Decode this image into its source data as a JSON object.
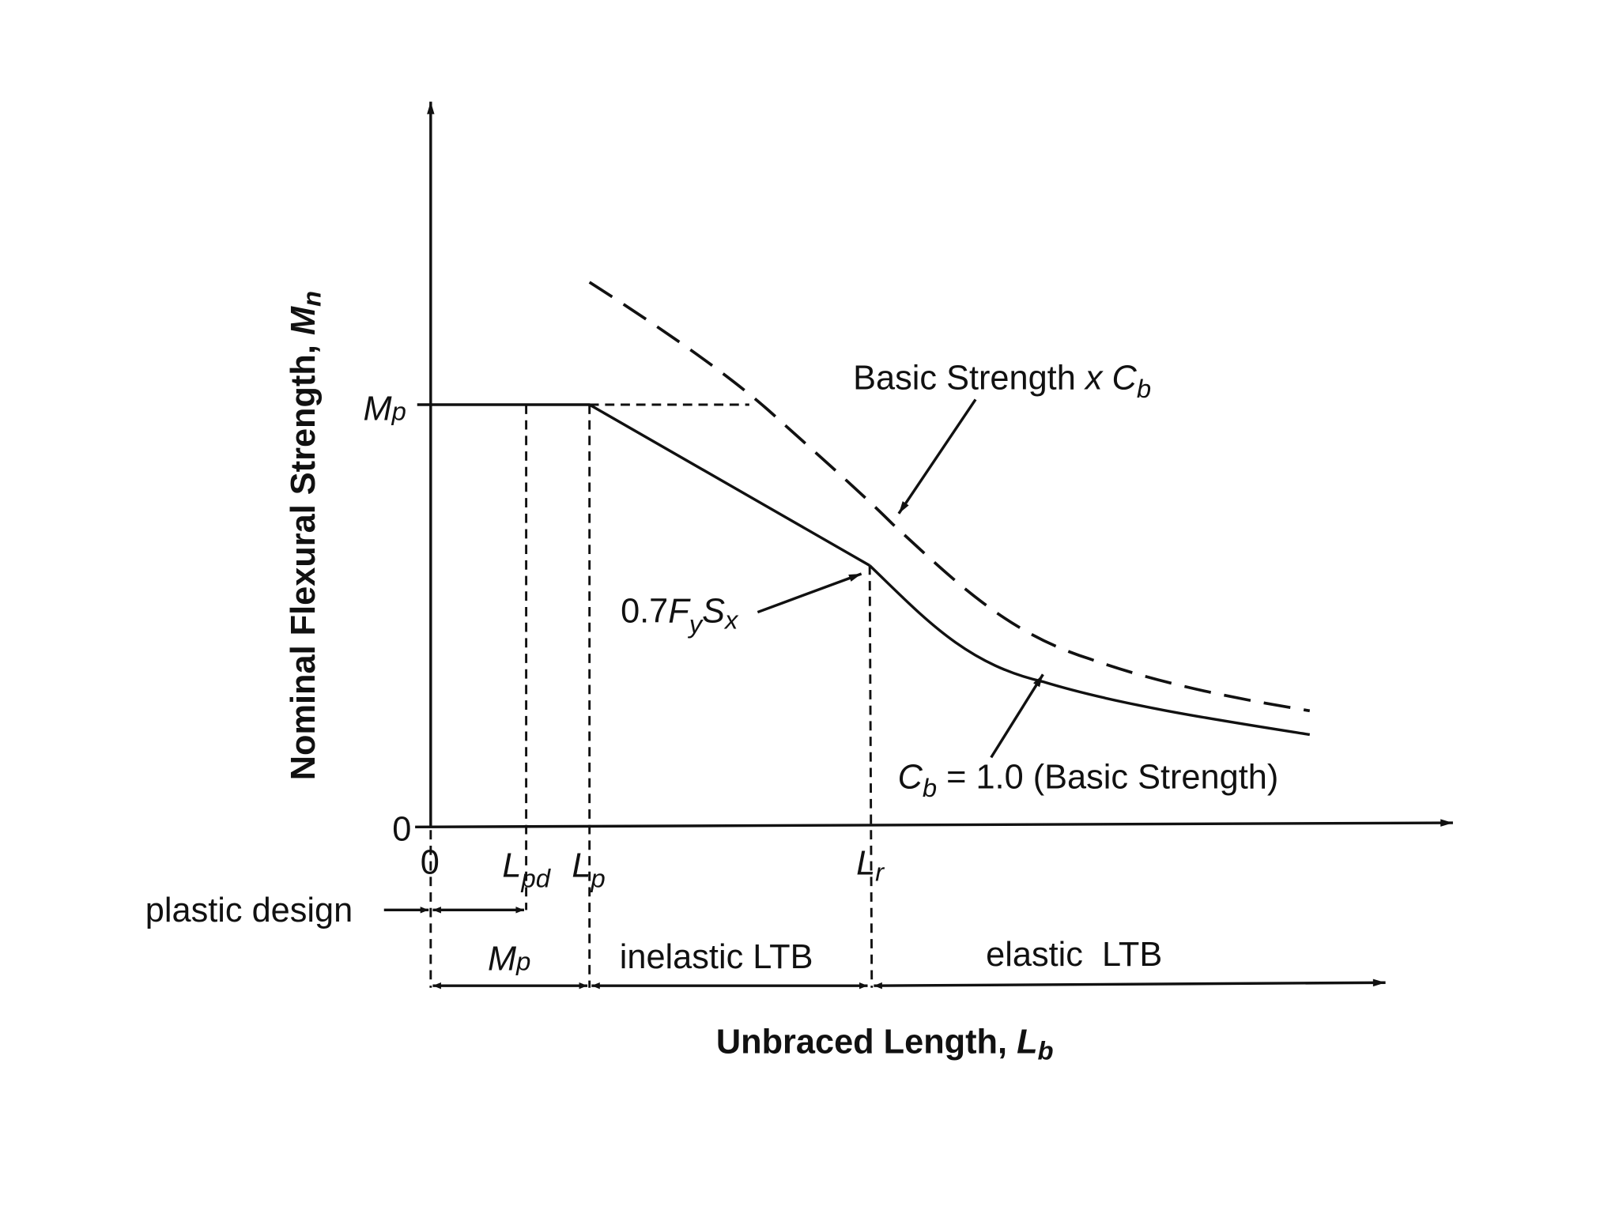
{
  "y_axis_label": [
    "Nominal Flexural Strength, ",
    "M",
    "n"
  ],
  "x_axis_label": [
    "Unbraced Length, ",
    "L",
    "b"
  ],
  "y_ticks": {
    "mp": [
      "M",
      "p"
    ],
    "zero": "0"
  },
  "x_ticks": {
    "zero": "0",
    "lpd": [
      "L",
      "pd"
    ],
    "lp": [
      "L",
      "p"
    ],
    "lr": [
      "L",
      "r"
    ]
  },
  "zones": {
    "plastic_design": "plastic design",
    "mp": [
      "M",
      "p"
    ],
    "inelastic": "inelastic LTB",
    "elastic": "elastic  LTB"
  },
  "annotations": {
    "cb_curve": [
      "Basic Strength ",
      "x",
      " ",
      "C",
      "b"
    ],
    "yield": [
      "0.7",
      "F",
      "y",
      "S",
      "x"
    ],
    "basic": [
      "C",
      "b",
      " = 1.0 (Basic Strength)"
    ]
  }
}
